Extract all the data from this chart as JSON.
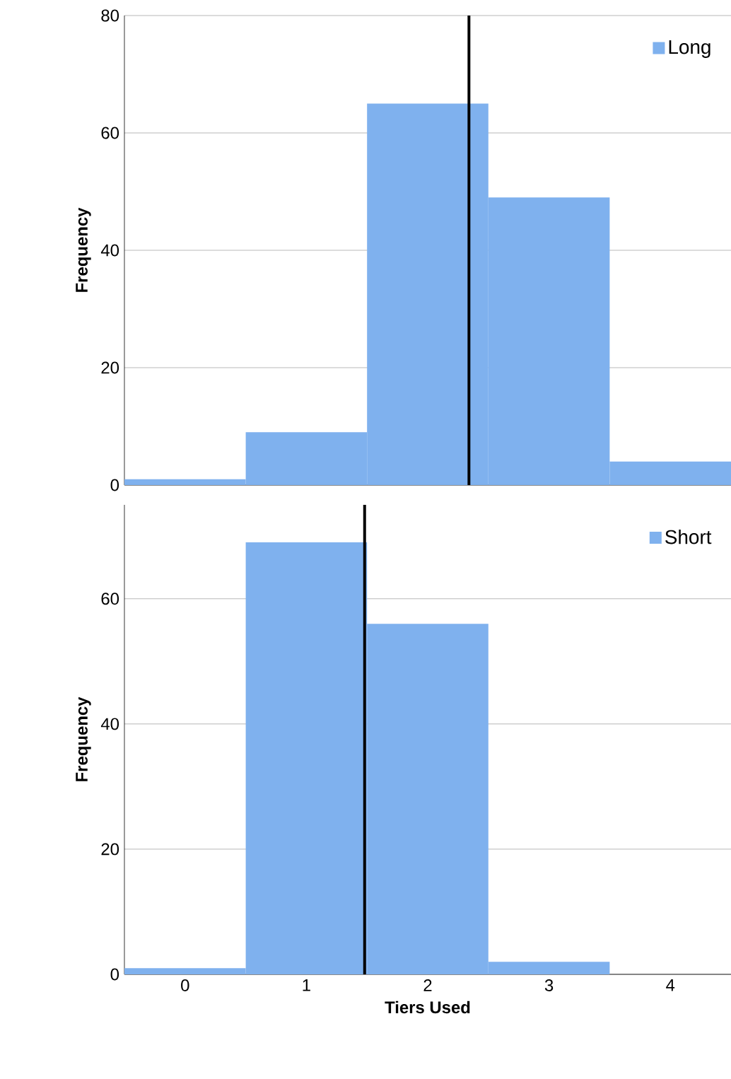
{
  "chart_data": [
    {
      "type": "histogram",
      "bins": [
        -0.5,
        0.5,
        1.5,
        2.5,
        3.5,
        4.5
      ],
      "series": [
        {
          "name": "Long",
          "color": "#7fb1ee",
          "values": [
            1,
            9,
            65,
            49,
            4
          ]
        }
      ],
      "xlim": [
        -0.5,
        4.5
      ],
      "xticks": [
        0,
        1,
        2,
        3,
        4
      ],
      "ylim": [
        0,
        80
      ],
      "yticks": [
        0,
        20,
        40,
        60,
        80
      ],
      "ylabel": "Frequency",
      "grid": "y",
      "legend": "top right",
      "tick_labels": "y",
      "ref_lines": [
        {
          "axis": "x",
          "value": 2.34,
          "color": "#000000"
        }
      ]
    },
    {
      "type": "histogram",
      "bins": [
        -0.5,
        0.5,
        1.5,
        2.5,
        3.5,
        4.5
      ],
      "series": [
        {
          "name": "Short",
          "color": "#7fb1ee",
          "values": [
            1,
            69,
            56,
            2,
            0
          ]
        }
      ],
      "xlim": [
        -0.5,
        4.5
      ],
      "xticks": [
        0,
        1,
        2,
        3,
        4
      ],
      "ylim": [
        0,
        75
      ],
      "yticks": [
        0,
        20,
        40,
        60
      ],
      "ylabel": "Frequency",
      "xlabel": "Tiers Used",
      "grid": "y",
      "legend": "top right",
      "ref_lines": [
        {
          "axis": "x",
          "value": 1.48,
          "color": "#000000"
        }
      ]
    }
  ]
}
